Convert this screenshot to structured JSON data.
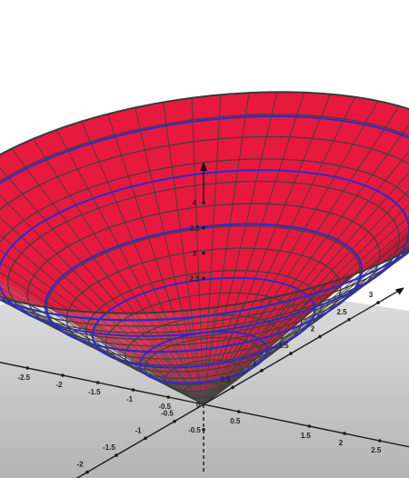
{
  "chart_data": {
    "type": "surface3d",
    "surface": "cone",
    "apex": [
      0,
      0,
      0
    ],
    "height": 4,
    "rim_radius": 3,
    "surface_color": "#e8193f",
    "mesh_color": "#404040",
    "contour_color": "#2b2bc8",
    "contour_count": 5,
    "floor_color": "#c8c8c8",
    "axes": {
      "x": {
        "ticks": [
          {
            "value": -2.5,
            "label": "-2.5"
          },
          {
            "value": -2,
            "label": "-2"
          },
          {
            "value": -1.5,
            "label": "-1.5"
          },
          {
            "value": -1,
            "label": "-1"
          },
          {
            "value": -0.5,
            "label": "-0.5"
          },
          {
            "value": 0.5,
            "label": "0.5"
          },
          {
            "value": 1.5,
            "label": "1.5"
          },
          {
            "value": 2,
            "label": "2"
          },
          {
            "value": 2.5,
            "label": "2.5"
          }
        ]
      },
      "y": {
        "ticks": [
          {
            "value": -2,
            "label": "-2"
          },
          {
            "value": -1.5,
            "label": "-1.5"
          },
          {
            "value": -1,
            "label": "-1"
          },
          {
            "value": -0.5,
            "label": "-0.5"
          },
          {
            "value": 0.5,
            "label": "0.5"
          },
          {
            "value": 1,
            "label": "1"
          },
          {
            "value": 1.5,
            "label": "1.5"
          },
          {
            "value": 2,
            "label": "2"
          },
          {
            "value": 2.5,
            "label": "2.5"
          },
          {
            "value": 3,
            "label": "3"
          }
        ]
      },
      "z": {
        "ticks": [
          {
            "value": -0.5,
            "label": "-0.5"
          },
          {
            "value": 2.5,
            "label": "2.5"
          },
          {
            "value": 3,
            "label": "3"
          },
          {
            "value": 3.5,
            "label": "3.5"
          },
          {
            "value": 4,
            "label": "4"
          }
        ]
      }
    },
    "origin_label": "0"
  }
}
